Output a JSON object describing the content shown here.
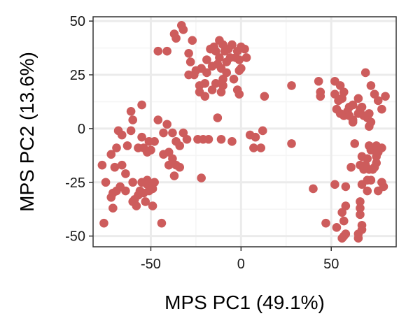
{
  "chart_data": {
    "type": "scatter",
    "xlabel": "MPS PC1 (49.1%)",
    "ylabel": "MPS PC2 (13.6%)",
    "xlim": [
      -82,
      86
    ],
    "ylim": [
      -55,
      52
    ],
    "x_ticks": [
      -50,
      0,
      50
    ],
    "x_tick_labels": [
      "-50",
      "0",
      "50"
    ],
    "y_ticks": [
      50,
      25,
      0,
      -25,
      -50
    ],
    "y_tick_labels": [
      "50",
      "25",
      "0",
      "-25",
      "-50"
    ],
    "grid": true,
    "legend": "none",
    "colors": {
      "point": "#cd5c5c",
      "panel_border": "#333333",
      "grid_major": "#ebebeb",
      "grid_minor": "#f5f5f5"
    },
    "points": [
      [
        -33,
        48
      ],
      [
        -32,
        46
      ],
      [
        -37,
        44
      ],
      [
        -36,
        42
      ],
      [
        -27,
        41
      ],
      [
        -12,
        41
      ],
      [
        -15,
        38
      ],
      [
        -10,
        39
      ],
      [
        -5,
        39
      ],
      [
        -7,
        37
      ],
      [
        -2,
        36
      ],
      [
        0,
        38
      ],
      [
        2,
        37
      ],
      [
        3,
        33
      ],
      [
        -3,
        33
      ],
      [
        -1,
        32
      ],
      [
        -9,
        36
      ],
      [
        -14,
        36
      ],
      [
        -12,
        33
      ],
      [
        -17,
        37
      ],
      [
        -19,
        32
      ],
      [
        -16,
        29
      ],
      [
        -22,
        28
      ],
      [
        -19,
        26
      ],
      [
        -13,
        30
      ],
      [
        -11,
        28
      ],
      [
        -8,
        26
      ],
      [
        -10,
        23
      ],
      [
        -4,
        23
      ],
      [
        -1,
        27
      ],
      [
        -8,
        31
      ],
      [
        -6,
        33
      ],
      [
        0,
        28
      ],
      [
        -29,
        35
      ],
      [
        -28,
        31
      ],
      [
        -46,
        36
      ],
      [
        -41,
        36
      ],
      [
        -25,
        27
      ],
      [
        -29,
        25
      ],
      [
        -26,
        25
      ],
      [
        -23,
        20
      ],
      [
        -20,
        21
      ],
      [
        -14,
        21
      ],
      [
        -10,
        20
      ],
      [
        -11,
        17
      ],
      [
        -16,
        18
      ],
      [
        -23,
        17
      ],
      [
        -20,
        15
      ],
      [
        -2,
        18
      ],
      [
        -1,
        16
      ],
      [
        13,
        15
      ],
      [
        28,
        20
      ],
      [
        -13,
        5
      ],
      [
        -55,
        11
      ],
      [
        -61,
        8
      ],
      [
        -60,
        4
      ],
      [
        -46,
        4
      ],
      [
        -41,
        2
      ],
      [
        -38,
        -2
      ],
      [
        -32,
        -2
      ],
      [
        -30,
        -5
      ],
      [
        -24,
        -5
      ],
      [
        -21,
        -5
      ],
      [
        -18,
        -5
      ],
      [
        -11,
        -5
      ],
      [
        -5,
        -6
      ],
      [
        5,
        -3
      ],
      [
        8,
        -4
      ],
      [
        12,
        -1
      ],
      [
        -68,
        -1
      ],
      [
        -66,
        -3
      ],
      [
        -61,
        -1
      ],
      [
        -63,
        -8
      ],
      [
        -55,
        -4
      ],
      [
        -51,
        -6
      ],
      [
        -48,
        -6
      ],
      [
        -43,
        -2
      ],
      [
        -36,
        -6
      ],
      [
        -34,
        -8
      ],
      [
        -57,
        -9
      ],
      [
        -54,
        -9
      ],
      [
        -52,
        -11
      ],
      [
        -50,
        -10
      ],
      [
        -43,
        -12
      ],
      [
        -40,
        -11
      ],
      [
        -38,
        -14
      ],
      [
        -36,
        -17
      ],
      [
        -40,
        -17
      ],
      [
        -34,
        -18
      ],
      [
        -69,
        -9
      ],
      [
        -72,
        -12
      ],
      [
        -70,
        -18
      ],
      [
        -66,
        -17
      ],
      [
        -64,
        -21
      ],
      [
        -77,
        -17
      ],
      [
        -75,
        -25
      ],
      [
        -67,
        -27
      ],
      [
        -69,
        -29
      ],
      [
        -71,
        -30
      ],
      [
        -72,
        -32
      ],
      [
        -64,
        -29
      ],
      [
        -60,
        -25
      ],
      [
        -55,
        -25
      ],
      [
        -52,
        -26
      ],
      [
        -56,
        -29
      ],
      [
        -54,
        -30
      ],
      [
        -51,
        -29
      ],
      [
        -49,
        -28
      ],
      [
        -48,
        -25
      ],
      [
        -52,
        -24
      ],
      [
        -57,
        -31
      ],
      [
        -59,
        -33
      ],
      [
        -60,
        -34
      ],
      [
        -58,
        -36
      ],
      [
        -53,
        -34
      ],
      [
        -49,
        -36
      ],
      [
        -71,
        -37
      ],
      [
        -76,
        -44
      ],
      [
        -44,
        -44
      ],
      [
        -37,
        -22
      ],
      [
        -22,
        -23
      ],
      [
        7,
        -9
      ],
      [
        11,
        -9
      ],
      [
        28,
        -7
      ],
      [
        43,
        22
      ],
      [
        52,
        22
      ],
      [
        44,
        17
      ],
      [
        44,
        15
      ],
      [
        52,
        16
      ],
      [
        54,
        13
      ],
      [
        55,
        20
      ],
      [
        57,
        17
      ],
      [
        56,
        14
      ],
      [
        53,
        9
      ],
      [
        55,
        7
      ],
      [
        57,
        6
      ],
      [
        59,
        8
      ],
      [
        60,
        10
      ],
      [
        62,
        11
      ],
      [
        60,
        6
      ],
      [
        62,
        4
      ],
      [
        65,
        7
      ],
      [
        66,
        9
      ],
      [
        68,
        6
      ],
      [
        70,
        5
      ],
      [
        71,
        7
      ],
      [
        72,
        3
      ],
      [
        71,
        1
      ],
      [
        69,
        26
      ],
      [
        72,
        20
      ],
      [
        74,
        16
      ],
      [
        76,
        13
      ],
      [
        80,
        15
      ],
      [
        78,
        9
      ],
      [
        65,
        14
      ],
      [
        62,
        3
      ],
      [
        67,
        10
      ],
      [
        63,
        -7
      ],
      [
        67,
        -13
      ],
      [
        69,
        -17
      ],
      [
        70,
        -14
      ],
      [
        72,
        -10
      ],
      [
        71,
        -8
      ],
      [
        75,
        -8
      ],
      [
        78,
        -9
      ],
      [
        76,
        -11
      ],
      [
        75,
        -13
      ],
      [
        75,
        -16
      ],
      [
        74,
        -18
      ],
      [
        73,
        -19
      ],
      [
        71,
        -19
      ],
      [
        68,
        -19
      ],
      [
        66,
        -17
      ],
      [
        61,
        -18
      ],
      [
        78,
        -25
      ],
      [
        76,
        -29
      ],
      [
        79,
        -27
      ],
      [
        72,
        -24
      ],
      [
        70,
        -24
      ],
      [
        70,
        -29
      ],
      [
        67,
        -26
      ],
      [
        58,
        -27
      ],
      [
        52,
        -26
      ],
      [
        40,
        -28
      ],
      [
        58,
        -36
      ],
      [
        56,
        -39
      ],
      [
        57,
        -43
      ],
      [
        53,
        -46
      ],
      [
        58,
        -49
      ],
      [
        57,
        -50
      ],
      [
        66,
        -34
      ],
      [
        66,
        -37
      ],
      [
        66,
        -40
      ],
      [
        67,
        -45
      ],
      [
        67,
        -47
      ],
      [
        65,
        -49
      ],
      [
        65,
        -51
      ],
      [
        56,
        -51
      ],
      [
        47,
        -44
      ]
    ]
  }
}
